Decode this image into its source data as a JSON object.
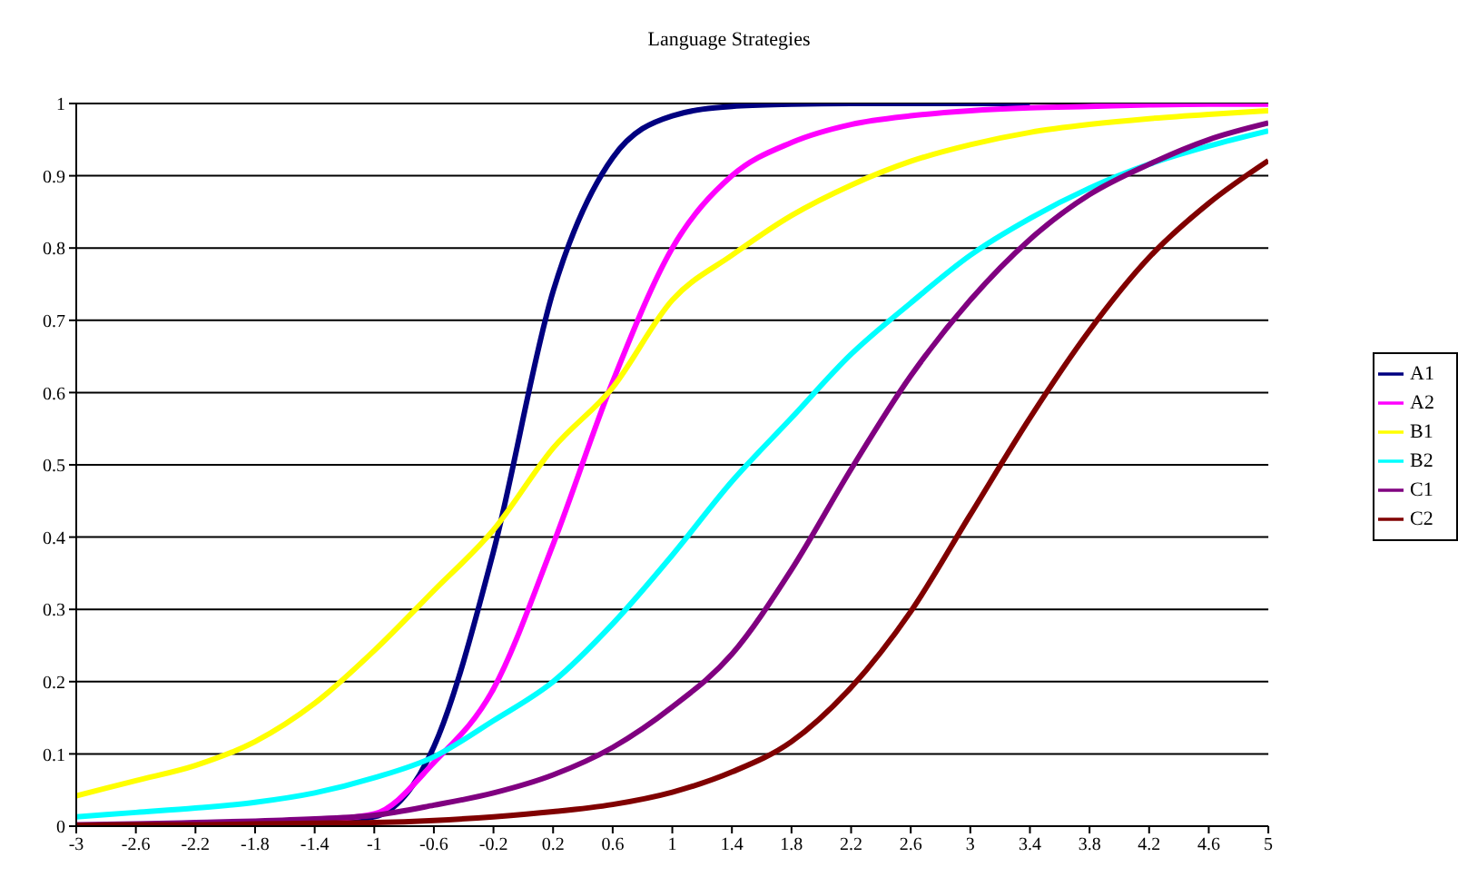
{
  "chart_data": {
    "type": "line",
    "title": "Language Strategies",
    "x": [
      -3,
      -2.6,
      -2.2,
      -1.8,
      -1.4,
      -1,
      -0.6,
      -0.2,
      0.2,
      0.6,
      1,
      1.4,
      1.8,
      2.2,
      2.6,
      3,
      3.4,
      3.8,
      4.2,
      4.6,
      5
    ],
    "series": [
      {
        "name": "A1",
        "color": "#000080",
        "values": [
          null,
          null,
          null,
          null,
          0.004,
          0.013,
          0.11,
          0.38,
          0.74,
          0.925,
          0.983,
          0.996,
          0.999,
          1,
          1,
          1,
          1,
          null,
          null,
          null,
          null
        ]
      },
      {
        "name": "A2",
        "color": "#ff00ff",
        "values": [
          null,
          null,
          null,
          null,
          0.008,
          0.017,
          0.088,
          0.19,
          0.39,
          0.615,
          0.8,
          0.9,
          0.946,
          0.971,
          0.983,
          0.99,
          0.994,
          0.996,
          0.998,
          0.999,
          0.999
        ]
      },
      {
        "name": "B1",
        "color": "#ffff00",
        "values": [
          0.042,
          0.063,
          0.084,
          0.117,
          0.17,
          0.243,
          0.326,
          0.41,
          0.523,
          0.607,
          0.728,
          0.79,
          0.845,
          0.887,
          0.92,
          0.943,
          0.96,
          0.971,
          0.979,
          0.985,
          0.99
        ]
      },
      {
        "name": "B2",
        "color": "#00ffff",
        "values": [
          0.013,
          0.019,
          0.025,
          0.033,
          0.046,
          0.067,
          0.096,
          0.146,
          0.2,
          0.28,
          0.375,
          0.477,
          0.565,
          0.653,
          0.724,
          0.79,
          0.841,
          0.883,
          0.916,
          0.941,
          0.962
        ]
      },
      {
        "name": "C1",
        "color": "#800080",
        "values": [
          0.002,
          0.003,
          0.005,
          0.007,
          0.01,
          0.015,
          0.029,
          0.046,
          0.071,
          0.109,
          0.165,
          0.238,
          0.355,
          0.494,
          0.623,
          0.728,
          0.812,
          0.874,
          0.916,
          0.95,
          0.973
        ]
      },
      {
        "name": "C2",
        "color": "#800000",
        "values": [
          0.001,
          0.002,
          0.002,
          0.003,
          0.004,
          0.005,
          0.008,
          0.013,
          0.02,
          0.03,
          0.047,
          0.075,
          0.117,
          0.192,
          0.297,
          0.431,
          0.565,
          0.686,
          0.787,
          0.862,
          0.921
        ]
      }
    ],
    "xlim": [
      -3,
      5
    ],
    "xticks": [
      -3,
      -2.6,
      -2.2,
      -1.8,
      -1.4,
      -1,
      -0.6,
      -0.2,
      0.2,
      0.6,
      1,
      1.4,
      1.8,
      2.2,
      2.6,
      3,
      3.4,
      3.8,
      4.2,
      4.6,
      5
    ],
    "ylim": [
      0,
      1
    ],
    "yticks": [
      0,
      0.1,
      0.2,
      0.3,
      0.4,
      0.5,
      0.6,
      0.7,
      0.8,
      0.9,
      1
    ],
    "grid": "y",
    "legend": "right",
    "marker": "none",
    "line_style": "solid"
  }
}
